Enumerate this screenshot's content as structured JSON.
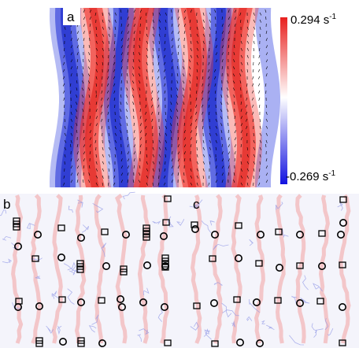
{
  "figure": {
    "panels": [
      {
        "id": "a",
        "label": "a"
      },
      {
        "id": "b",
        "label": "b"
      },
      {
        "id": "c",
        "label": "c"
      }
    ],
    "colorbar": {
      "max_value": "0.294",
      "min_value": "-0.269",
      "unit": "s",
      "unit_exponent": "-1",
      "colors": {
        "high": "#ff0000",
        "mid": "#ffffff",
        "low": "#0000ff"
      }
    },
    "marker_types": [
      "circle",
      "square"
    ]
  }
}
